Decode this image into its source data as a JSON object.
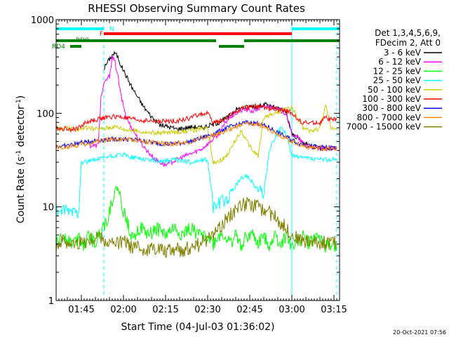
{
  "chart_data": {
    "type": "line",
    "title": "RHESSI Observing Summary Count Rates",
    "xlabel": "Start Time (04-Jul-03 01:36:02)",
    "ylabel_main": "Count Rate (s",
    "ylabel_sup1": "-1",
    "ylabel_mid": " detector",
    "ylabel_sup2": "-1",
    "ylabel_end": ")",
    "x_range_minutes": [
      0,
      101
    ],
    "ylim": [
      1,
      1000
    ],
    "y_scale": "log",
    "x_ticks": [
      {
        "label": "01:45",
        "minute": 9
      },
      {
        "label": "02:00",
        "minute": 24
      },
      {
        "label": "02:15",
        "minute": 39
      },
      {
        "label": "02:30",
        "minute": 54
      },
      {
        "label": "02:45",
        "minute": 69
      },
      {
        "label": "03:00",
        "minute": 84
      },
      {
        "label": "03:15",
        "minute": 99
      }
    ],
    "y_ticks": [
      {
        "label": "1",
        "value": 1
      },
      {
        "label": "10",
        "value": 10
      },
      {
        "label": "100",
        "value": 100
      },
      {
        "label": "1000",
        "value": 1000
      }
    ],
    "legend_header": [
      "Det 1,3,4,5,6,9,",
      "FDecim 2, Att 0"
    ],
    "legend_placement": "right",
    "series": [
      {
        "name": "3 - 6 keV",
        "color": "#000000",
        "x": [
          17,
          18,
          19,
          20,
          21,
          22,
          23,
          25,
          27,
          29,
          31,
          33,
          35,
          37,
          40,
          43,
          46,
          49,
          52,
          55,
          58,
          61,
          64,
          67,
          70,
          72,
          74,
          76,
          78,
          80,
          82,
          84,
          86,
          88,
          90,
          92,
          95,
          98,
          100
        ],
        "y": [
          300,
          340,
          380,
          420,
          440,
          400,
          330,
          250,
          190,
          150,
          120,
          100,
          85,
          75,
          72,
          68,
          70,
          72,
          70,
          75,
          80,
          90,
          110,
          115,
          120,
          118,
          125,
          120,
          115,
          110,
          100,
          60,
          55,
          48,
          46,
          44,
          42,
          42,
          42
        ]
      },
      {
        "name": "6 - 12 keV",
        "color": "#ff00ff",
        "x": [
          12,
          13,
          14,
          15,
          16,
          17,
          18,
          19,
          20,
          21,
          22,
          23,
          25,
          27,
          29,
          31,
          33,
          35,
          37,
          39,
          41,
          43,
          46,
          49,
          52,
          55,
          58,
          61,
          64,
          67,
          70,
          73,
          76,
          79,
          82,
          84,
          86,
          88,
          90,
          92,
          95,
          98,
          100
        ],
        "y": [
          45,
          45,
          45,
          46,
          150,
          200,
          230,
          250,
          400,
          350,
          250,
          160,
          90,
          70,
          55,
          45,
          38,
          33,
          30,
          28,
          30,
          32,
          35,
          38,
          42,
          50,
          60,
          85,
          100,
          110,
          105,
          115,
          120,
          110,
          100,
          60,
          55,
          48,
          45,
          43,
          42,
          42,
          42
        ]
      },
      {
        "name": "12 - 25 keV",
        "color": "#00ff00",
        "x": [
          0,
          3,
          6,
          8,
          10,
          12,
          14,
          16,
          18,
          20,
          22,
          24,
          27,
          30,
          33,
          36,
          39,
          42,
          45,
          48,
          51,
          54,
          56,
          58,
          60,
          62,
          64,
          66,
          68,
          70,
          72,
          74,
          76,
          78,
          80,
          82,
          84,
          86,
          88,
          90,
          93,
          96,
          100
        ],
        "y": [
          4,
          5,
          4,
          5,
          4,
          5,
          4,
          6,
          7,
          12,
          16,
          9,
          5,
          6,
          5,
          6,
          5,
          6,
          5,
          6,
          5,
          5,
          4,
          5,
          5,
          4,
          5,
          4,
          5,
          5,
          4,
          5,
          4,
          5,
          4,
          5,
          4,
          4,
          5,
          4,
          5,
          4,
          4
        ]
      },
      {
        "name": "25 - 50 keV",
        "color": "#00ffff",
        "x": [
          0,
          2,
          4,
          6,
          8,
          9,
          10,
          12,
          15,
          18,
          21,
          24,
          27,
          30,
          33,
          36,
          39,
          42,
          45,
          48,
          51,
          54,
          56,
          58,
          60,
          62,
          63,
          64,
          66,
          68,
          70,
          72,
          74,
          76,
          78,
          80,
          82,
          84,
          86,
          88,
          90,
          92,
          95,
          98,
          100
        ],
        "y": [
          9,
          9,
          9,
          9,
          9,
          30,
          30,
          31,
          32,
          34,
          35,
          36,
          34,
          33,
          32,
          31,
          31,
          32,
          31,
          30,
          31,
          32,
          10,
          11,
          12,
          13,
          15,
          17,
          20,
          22,
          18,
          15,
          14,
          40,
          55,
          70,
          60,
          36,
          34,
          33,
          33,
          32,
          32,
          32,
          32
        ]
      },
      {
        "name": "50 - 100 keV",
        "color": "#cccc00",
        "x": [
          0,
          2,
          4,
          6,
          8,
          10,
          12,
          14,
          16,
          18,
          20,
          22,
          24,
          26,
          28,
          30,
          33,
          36,
          39,
          42,
          45,
          48,
          51,
          54,
          56,
          58,
          60,
          62,
          64,
          66,
          68,
          70,
          72,
          74,
          76,
          78,
          80,
          82,
          84,
          86,
          88,
          90,
          92,
          94,
          96,
          98,
          100
        ],
        "y": [
          70,
          68,
          69,
          67,
          68,
          70,
          69,
          68,
          68,
          70,
          72,
          72,
          68,
          66,
          65,
          64,
          62,
          62,
          62,
          63,
          64,
          65,
          68,
          70,
          30,
          31,
          33,
          40,
          52,
          65,
          50,
          40,
          35,
          90,
          95,
          100,
          105,
          110,
          115,
          90,
          70,
          65,
          65,
          70,
          120,
          70,
          70
        ]
      },
      {
        "name": "100 - 300 keV",
        "color": "#ff0000",
        "x": [
          0,
          2,
          4,
          6,
          8,
          10,
          12,
          14,
          16,
          18,
          20,
          22,
          24,
          26,
          28,
          30,
          33,
          36,
          39,
          42,
          45,
          48,
          51,
          54,
          56,
          58,
          60,
          62,
          64,
          66,
          68,
          70,
          72,
          74,
          76,
          78,
          80,
          82,
          84,
          86,
          88,
          90,
          92,
          94,
          96,
          98,
          100
        ],
        "y": [
          70,
          68,
          69,
          67,
          70,
          78,
          82,
          85,
          88,
          90,
          92,
          92,
          90,
          88,
          86,
          84,
          83,
          82,
          82,
          83,
          85,
          90,
          98,
          100,
          80,
          82,
          85,
          95,
          105,
          110,
          115,
          120,
          118,
          115,
          112,
          110,
          108,
          106,
          102,
          85,
          80,
          78,
          80,
          78,
          90,
          85,
          85
        ]
      },
      {
        "name": "300 - 800 keV",
        "color": "#0000ff",
        "x": [
          0,
          4,
          8,
          12,
          16,
          20,
          24,
          28,
          32,
          36,
          40,
          44,
          48,
          52,
          56,
          60,
          64,
          68,
          72,
          76,
          80,
          84,
          88,
          92,
          96,
          100
        ],
        "y": [
          44,
          45,
          48,
          50,
          52,
          53,
          53,
          52,
          50,
          48,
          47,
          48,
          50,
          55,
          60,
          68,
          75,
          80,
          78,
          70,
          60,
          52,
          46,
          44,
          43,
          43
        ]
      },
      {
        "name": "800 - 7000 keV",
        "color": "#ff8800",
        "x": [
          0,
          4,
          8,
          12,
          16,
          20,
          24,
          28,
          32,
          36,
          40,
          44,
          48,
          52,
          56,
          60,
          64,
          68,
          72,
          76,
          80,
          84,
          88,
          92,
          96,
          100
        ],
        "y": [
          43,
          44,
          46,
          48,
          51,
          53,
          53,
          52,
          50,
          48,
          47,
          48,
          50,
          54,
          58,
          64,
          72,
          78,
          76,
          68,
          58,
          50,
          45,
          43,
          42,
          42
        ]
      },
      {
        "name": "7000 - 15000 keV",
        "color": "#808000",
        "x": [
          0,
          3,
          6,
          9,
          12,
          15,
          18,
          21,
          24,
          27,
          30,
          33,
          36,
          39,
          42,
          45,
          48,
          51,
          54,
          57,
          60,
          63,
          66,
          69,
          72,
          75,
          78,
          81,
          84,
          87,
          90,
          93,
          96,
          100
        ],
        "y": [
          4,
          4.5,
          4,
          4.2,
          4.5,
          5,
          4.2,
          4,
          4.3,
          3.8,
          3.6,
          3.5,
          3.8,
          3.4,
          3.6,
          3.5,
          3.8,
          4,
          4.5,
          5.5,
          7,
          9,
          10.5,
          11,
          10,
          9,
          8,
          6.5,
          5,
          4.5,
          4.3,
          4.2,
          4.2,
          4.2
        ]
      }
    ],
    "status_bars": [
      {
        "label": "N",
        "color": "#00ffff",
        "segments": [
          [
            0,
            17
          ],
          [
            84,
            101
          ]
        ]
      },
      {
        "label": "F",
        "color": "#ff0000",
        "segments": [
          [
            17,
            84
          ]
        ]
      },
      {
        "label": "RD0",
        "color": "#008000",
        "segments": [
          [
            0,
            57
          ],
          [
            67,
            101
          ]
        ]
      },
      {
        "label": "RD4",
        "color": "#008000",
        "segments": [
          [
            5,
            9
          ],
          [
            58,
            67
          ]
        ]
      }
    ],
    "grid": false,
    "vertical_markers": [
      {
        "minute": 0,
        "color": "#00ffff",
        "style": "solid"
      },
      {
        "minute": 17,
        "color": "#00ffff",
        "style": "dashed"
      },
      {
        "minute": 84,
        "color": "#00ffff",
        "style": "solid"
      },
      {
        "minute": 100,
        "color": "#00ffff",
        "style": "dashed"
      }
    ]
  },
  "footer_timestamp": "20-Oct-2021 07:56"
}
